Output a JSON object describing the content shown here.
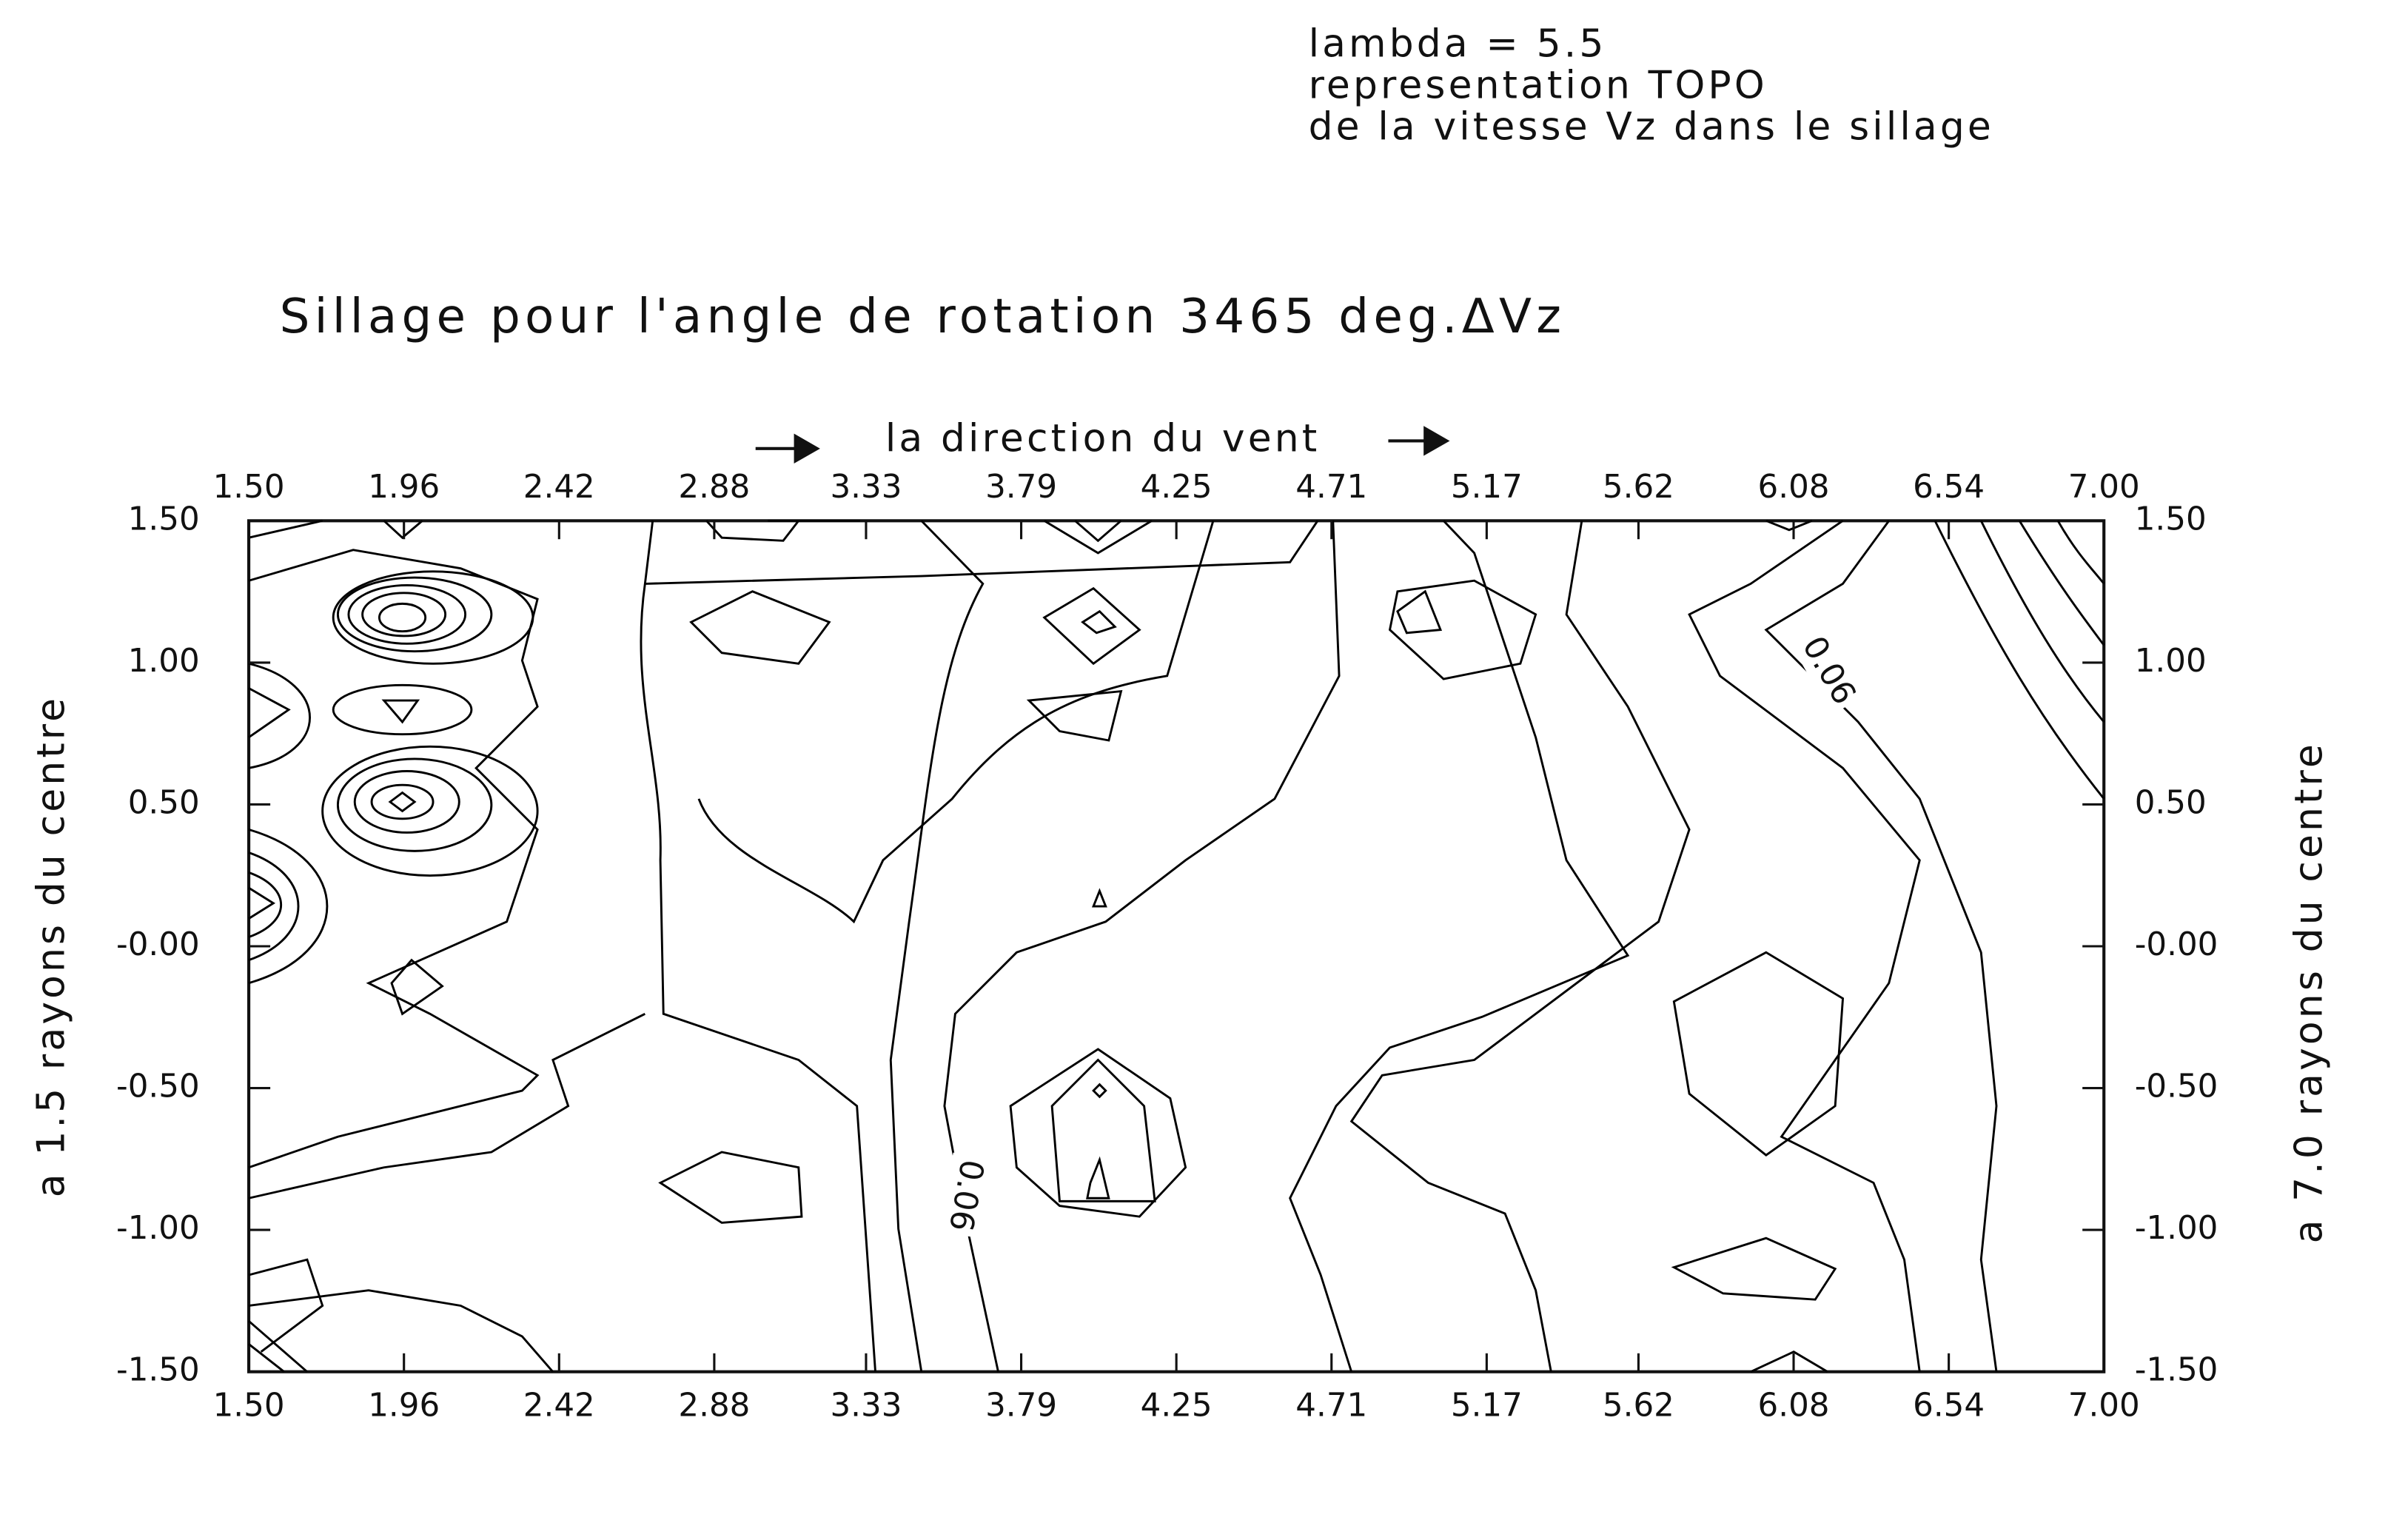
{
  "chart_data": {
    "type": "contour",
    "header": [
      "lambda = 5.5",
      "representation TOPO",
      "de la vitesse Vz dans le sillage"
    ],
    "title": "Sillage pour l'angle de rotation 3465 deg.ΔVz",
    "x_label": "la direction du vent",
    "y_label": "a 1.5 rayons du centre",
    "y2_label": "a 7.0 rayons du centre",
    "xlim": [
      1.5,
      7
    ],
    "ylim": [
      -1.5,
      1.5
    ],
    "y2lim": [
      -1.5,
      1.5
    ],
    "xticks": [
      {
        "value": 1.5,
        "label": "1.50"
      },
      1.96,
      2.42,
      2.88,
      3.33,
      3.79,
      4.25,
      4.71,
      5.17,
      5.62,
      6.08,
      6.54,
      {
        "value": 7,
        "label": "7.00"
      }
    ],
    "yticks": [
      {
        "value": 1.5,
        "label": "1.50"
      },
      {
        "value": 1,
        "label": "1.00"
      },
      {
        "value": 0.5,
        "label": "0.50"
      },
      {
        "value": 0,
        "label": "-0.00"
      },
      {
        "value": -0.5,
        "label": "-0.50"
      },
      {
        "value": -1,
        "label": "-1.00"
      },
      {
        "value": -1.5,
        "label": "-1.50"
      }
    ],
    "y2ticks": [
      {
        "value": 1.5,
        "label": "1.50"
      },
      {
        "value": 1,
        "label": "1.00"
      },
      {
        "value": 0.5,
        "label": "0.50"
      },
      {
        "value": 0,
        "label": "-0.00"
      },
      {
        "value": -0.5,
        "label": "-0.50"
      },
      {
        "value": -1,
        "label": "-1.00"
      },
      {
        "value": -1.5,
        "label": "-1.50"
      }
    ],
    "contour_labels": [
      "0.06",
      "0.06"
    ],
    "color": "#000000"
  }
}
